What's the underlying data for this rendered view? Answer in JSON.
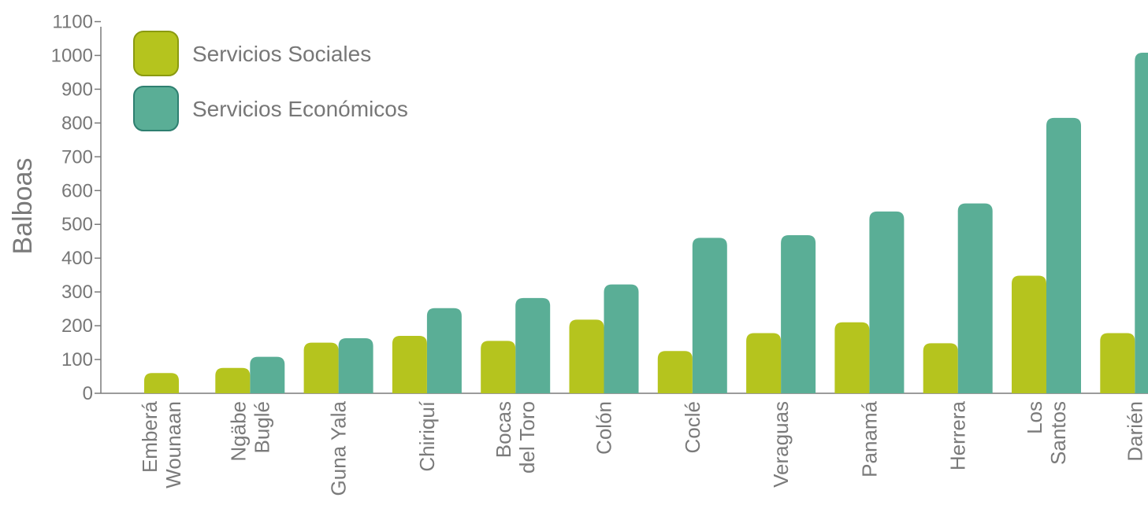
{
  "chart_data": {
    "type": "bar",
    "ylabel": "Balboas",
    "xlabel": "",
    "ylim": [
      0,
      1100
    ],
    "yticks": [
      0,
      100,
      200,
      300,
      400,
      500,
      600,
      700,
      800,
      900,
      1000,
      1100
    ],
    "grid": false,
    "legend_position": "top-left",
    "categories": [
      [
        "Emberá",
        "Wounaan"
      ],
      [
        "Ngäbe",
        "Buglé"
      ],
      [
        "Guna Yala"
      ],
      [
        "Chiriquí"
      ],
      [
        "Bocas",
        "del Toro"
      ],
      [
        "Colón"
      ],
      [
        "Coclé"
      ],
      [
        "Veraguas"
      ],
      [
        "Panamá"
      ],
      [
        "Herrera"
      ],
      [
        "Los",
        "Santos"
      ],
      [
        "Darién"
      ]
    ],
    "series": [
      {
        "name": "Servicios Sociales",
        "color": "#b5c41e",
        "values": [
          60,
          75,
          150,
          170,
          155,
          218,
          125,
          178,
          210,
          148,
          348,
          178
        ]
      },
      {
        "name": "Servicios Económicos",
        "color": "#5aae96",
        "values": [
          null,
          108,
          163,
          252,
          282,
          322,
          460,
          468,
          538,
          562,
          815,
          1008
        ]
      }
    ]
  }
}
